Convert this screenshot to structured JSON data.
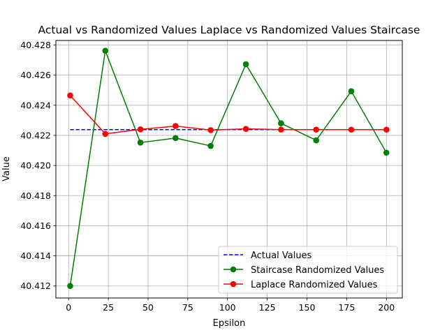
{
  "chart_data": {
    "type": "line",
    "title": "Actual vs Randomized Values Laplace vs Randomized Values Staircase",
    "xlabel": "Epsilon",
    "ylabel": "Value",
    "xlim": [
      -8,
      210
    ],
    "ylim": [
      40.4112,
      40.4283
    ],
    "xticks": [
      0,
      25,
      50,
      75,
      100,
      125,
      150,
      175,
      200
    ],
    "xtick_labels": [
      "0",
      "25",
      "50",
      "75",
      "100",
      "125",
      "150",
      "175",
      "200"
    ],
    "yticks": [
      40.412,
      40.414,
      40.416,
      40.418,
      40.42,
      40.422,
      40.424,
      40.426,
      40.428
    ],
    "ytick_labels": [
      "40.412",
      "40.414",
      "40.416",
      "40.418",
      "40.420",
      "40.422",
      "40.424",
      "40.426",
      "40.428"
    ],
    "grid": true,
    "legend_position": "lower-right",
    "x": [
      1,
      23.1,
      45.2,
      67.3,
      89.4,
      111.6,
      133.7,
      155.8,
      177.9,
      200
    ],
    "series": [
      {
        "name": "Actual Values",
        "style": "dashed",
        "marker": "none",
        "color": "#0000ff",
        "values": [
          40.42238,
          40.42238,
          40.42238,
          40.42238,
          40.42238,
          40.42238,
          40.42238,
          40.42238,
          40.42238,
          40.42238
        ]
      },
      {
        "name": "Staircase Randomized Values",
        "style": "solid",
        "marker": "circle",
        "color": "#008000",
        "values": [
          40.412,
          40.42762,
          40.42152,
          40.42182,
          40.4213,
          40.42672,
          40.4228,
          40.42167,
          40.42493,
          40.42085
        ]
      },
      {
        "name": "Laplace Randomized Values",
        "style": "solid",
        "marker": "circle",
        "color": "#ff0000",
        "values": [
          40.42465,
          40.4221,
          40.4224,
          40.42262,
          40.42235,
          40.42243,
          40.42238,
          40.42238,
          40.42238,
          40.42238
        ]
      }
    ]
  }
}
